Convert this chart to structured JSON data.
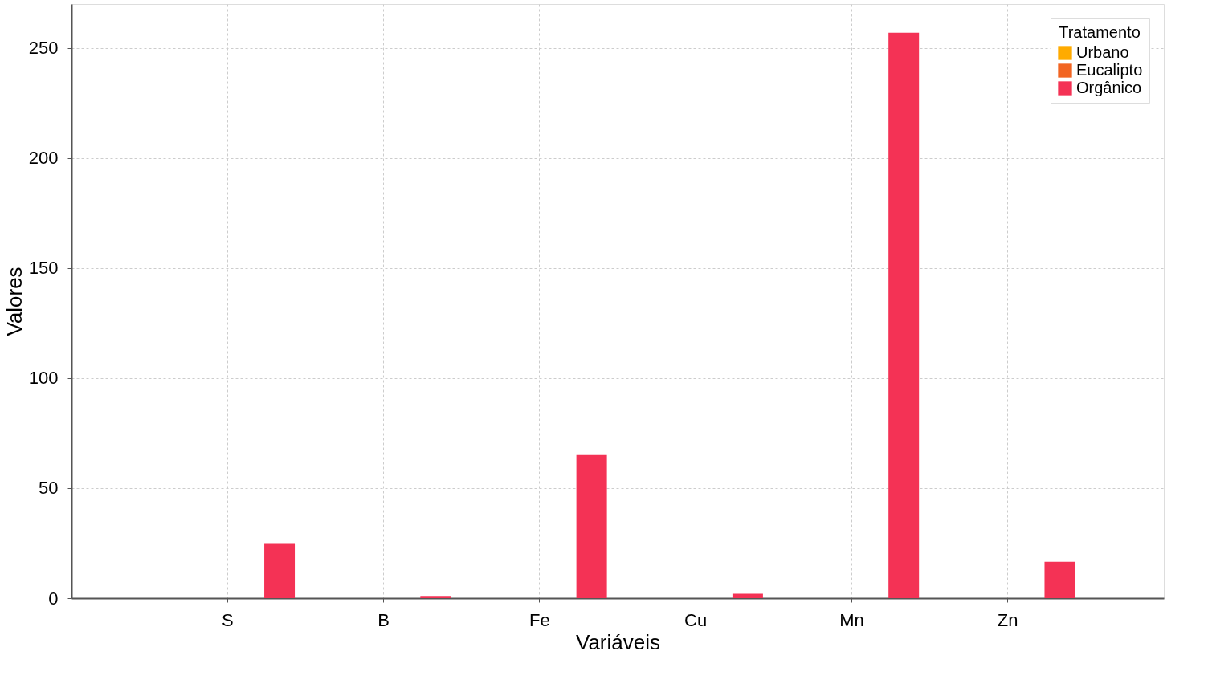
{
  "chart_data": {
    "type": "bar",
    "xlabel": "Variáveis",
    "ylabel": "Valores",
    "legend_title": "Tratamento",
    "categories": [
      "S",
      "B",
      "Fe",
      "Cu",
      "Mn",
      "Zn"
    ],
    "series": [
      {
        "name": "Urbano",
        "color": "#ffab00",
        "values": [
          null,
          null,
          null,
          null,
          null,
          null
        ]
      },
      {
        "name": "Eucalipto",
        "color": "#f26522",
        "values": [
          null,
          null,
          null,
          null,
          null,
          null
        ]
      },
      {
        "name": "Orgânico",
        "color": "#f43255",
        "values": [
          25,
          1,
          65,
          2,
          257,
          16.5
        ]
      }
    ],
    "ylim": [
      0,
      270
    ],
    "yticks": [
      0,
      50,
      100,
      150,
      200,
      250
    ],
    "grid": true,
    "legend": "top right"
  }
}
